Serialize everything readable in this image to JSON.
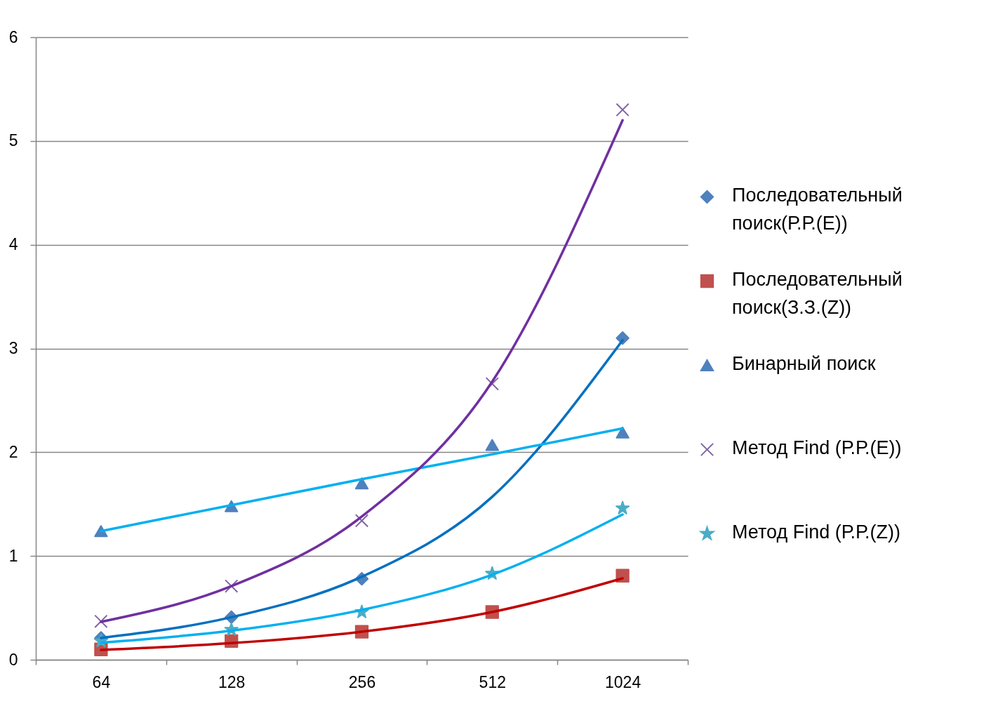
{
  "chart_data": {
    "type": "scatter",
    "categories": [
      "64",
      "128",
      "256",
      "512",
      "1024"
    ],
    "ylim": [
      0,
      6
    ],
    "yticks": [
      0,
      1,
      2,
      3,
      4,
      5,
      6
    ],
    "grid": "y",
    "legend": "right",
    "series": [
      {
        "name": "Последовательный поиск(Р.Р.(E))",
        "marker": "diamond",
        "color": "#4f81bd",
        "values": [
          0.21,
          0.41,
          0.78,
          null,
          3.1
        ]
      },
      {
        "name": "Последовательный поиск(З.З.(Z))",
        "marker": "square",
        "color": "#c0504d",
        "values": [
          0.1,
          0.18,
          0.27,
          0.46,
          0.81
        ]
      },
      {
        "name": "Бинарный поиск",
        "marker": "triangle",
        "color": "#4f81bd",
        "values": [
          1.24,
          1.48,
          1.7,
          2.07,
          2.19
        ]
      },
      {
        "name": "Метод Find (Р.Р.(E))",
        "marker": "cross",
        "color": "#8064a2",
        "values": [
          0.37,
          0.71,
          1.34,
          2.66,
          5.3
        ]
      },
      {
        "name": "Метод Find (Р.Р.(Z))",
        "marker": "star",
        "color": "#4bacc6",
        "values": [
          0.18,
          0.29,
          0.46,
          0.83,
          1.46
        ]
      },
      {
        "type": "line",
        "color": "#0070c0",
        "values": [
          0.21,
          0.41,
          0.8,
          1.57,
          3.08
        ]
      },
      {
        "type": "line",
        "color": "#c00000",
        "values": [
          0.095,
          0.16,
          0.27,
          0.46,
          0.785
        ]
      },
      {
        "type": "line",
        "color": "#00b0f0",
        "values": [
          1.24,
          1.49,
          1.74,
          1.98,
          2.23
        ]
      },
      {
        "type": "line",
        "color": "#7030a0",
        "values": [
          0.365,
          0.71,
          1.38,
          2.68,
          5.2
        ]
      },
      {
        "type": "line",
        "color": "#00b0f0",
        "values": [
          0.165,
          0.28,
          0.48,
          0.82,
          1.4
        ]
      }
    ]
  }
}
